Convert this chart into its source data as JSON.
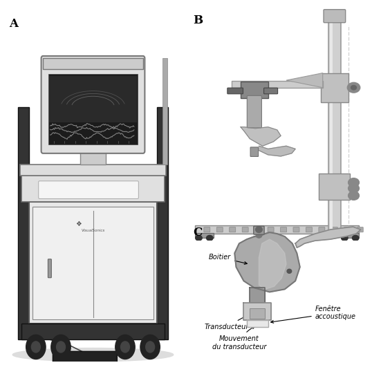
{
  "bg_color": "#ffffff",
  "panel_A_label": "A",
  "panel_B_label": "B",
  "panel_C_label": "C",
  "boitier_label": "Boitier",
  "transducteur_label": "Transducteur",
  "mouvement_label": "Mouvement\ndu transducteur",
  "fenetre_label": "Fenêtre\naccoustique",
  "annotation_fontsize": 7.0,
  "panel_label_fontsize": 12,
  "panel_A": {
    "xlim": [
      0,
      10
    ],
    "ylim": [
      0,
      16
    ]
  },
  "panel_B": {
    "xlim": [
      0,
      10
    ],
    "ylim": [
      0,
      16
    ]
  },
  "panel_C": {
    "xlim": [
      0,
      12
    ],
    "ylim": [
      0,
      10
    ]
  }
}
